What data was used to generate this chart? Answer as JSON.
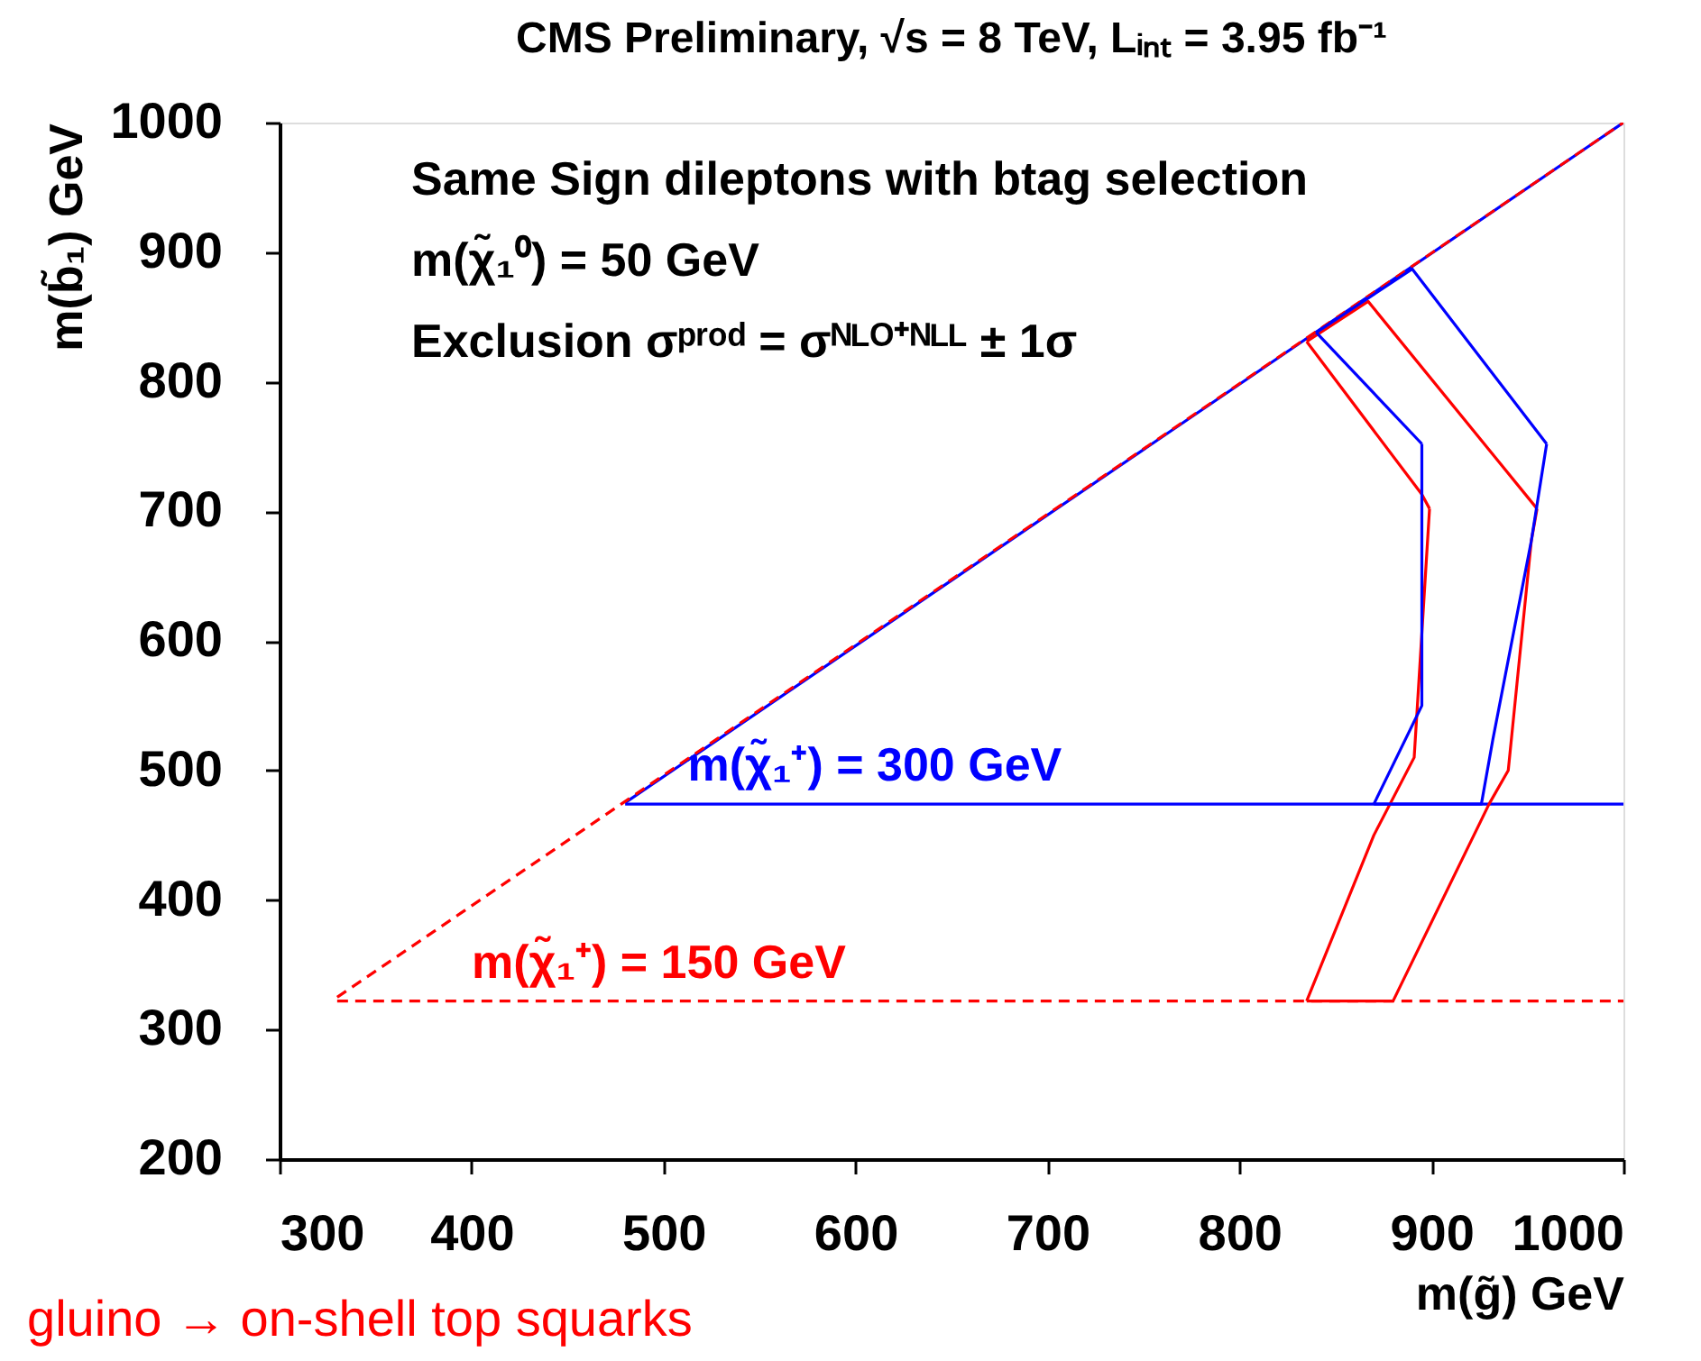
{
  "chart_data": {
    "type": "line",
    "title": "CMS Preliminary, √s = 8 TeV, Lᵢₙₜ = 3.95 fb⁻¹",
    "xlabel": "m(g̃) GeV",
    "ylabel": "m(b̃₁) GeV",
    "annotations": [
      "Same Sign dileptons with btag selection",
      "m(χ̃₁⁰) = 50 GeV",
      "Exclusion σᵖʳᵒᵈ = σᴺᴸᴼ⁺ᴺᴸᴸ ± 1σ",
      "gluino → on-shell top squarks"
    ],
    "xlim": [
      300,
      1000
    ],
    "ylim": [
      200,
      1000
    ],
    "xticks": [
      300,
      400,
      500,
      600,
      700,
      800,
      900,
      1000
    ],
    "yticks": [
      200,
      300,
      400,
      500,
      600,
      700,
      800,
      900,
      1000
    ],
    "grid": false,
    "marker": "none",
    "series": [
      {
        "name": "m(χ̃₁⁺) = 150 GeV",
        "color": "#ff0000",
        "line_style": "dashed",
        "x": [
          330,
          1000
        ],
        "values": [
          322,
          322
        ]
      },
      {
        "name": "m(χ̃₁⁺) = 300 GeV",
        "color": "#0000ff",
        "line_style": "solid",
        "x": [
          480,
          1000
        ],
        "values": [
          474,
          474
        ]
      },
      {
        "color": "#0000ff",
        "line_style": "solid",
        "x": [
          480,
          1000
        ],
        "values": [
          475,
          1000
        ]
      },
      {
        "color": "#ff0000",
        "line_style": "dashed",
        "x": [
          330,
          1000
        ],
        "values": [
          325,
          1000
        ]
      },
      {
        "color": "#ff0000",
        "line_style": "solid",
        "x": [
          835,
          867,
          955
        ],
        "values": [
          831,
          862,
          702
        ]
      },
      {
        "color": "#ff0000",
        "line_style": "solid",
        "x": [
          835,
          880,
          930,
          940,
          952,
          955
        ],
        "values": [
          322,
          322,
          474,
          500,
          677,
          702
        ]
      },
      {
        "color": "#ff0000",
        "line_style": "solid",
        "x": [
          835,
          870,
          891,
          899
        ],
        "values": [
          322,
          450,
          510,
          702
        ]
      },
      {
        "color": "#ff0000",
        "line_style": "solid",
        "x": [
          835,
          895,
          899
        ],
        "values": [
          831,
          713,
          702
        ]
      },
      {
        "color": "#0000ff",
        "line_style": "solid",
        "x": [
          840,
          890,
          960
        ],
        "values": [
          838,
          887,
          752
        ]
      },
      {
        "color": "#0000ff",
        "line_style": "solid",
        "x": [
          870,
          926,
          932,
          952,
          960
        ],
        "values": [
          474,
          474,
          524,
          677,
          752
        ]
      },
      {
        "color": "#0000ff",
        "line_style": "solid",
        "x": [
          870,
          895,
          895
        ],
        "values": [
          474,
          550,
          752
        ]
      },
      {
        "color": "#0000ff",
        "line_style": "solid",
        "x": [
          840,
          895
        ],
        "values": [
          838,
          752
        ]
      }
    ]
  }
}
